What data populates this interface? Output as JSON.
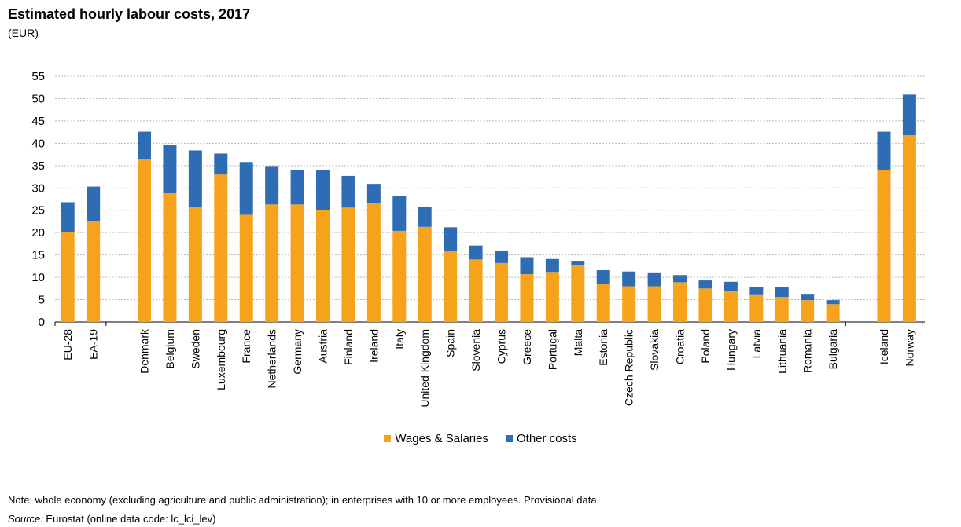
{
  "header": {
    "title": "Estimated hourly labour costs, 2017",
    "subtitle": "(EUR)"
  },
  "colors": {
    "wages": "#F7A21B",
    "other": "#2E6DB4",
    "grid": "#BBBBBB",
    "axis": "#000000"
  },
  "chart_data": {
    "type": "bar",
    "stacked": true,
    "title": "Estimated hourly labour costs, 2017",
    "ylabel": "(EUR)",
    "ylim": [
      0,
      55
    ],
    "yticks": [
      0,
      5,
      10,
      15,
      20,
      25,
      30,
      35,
      40,
      45,
      50,
      55
    ],
    "grid": "horizontal dashed",
    "legend": "bottom-center",
    "categories": [
      "EU-28",
      "EA-19",
      "Denmark",
      "Belgium",
      "Sweden",
      "Luxembourg",
      "France",
      "Netherlands",
      "Germany",
      "Austria",
      "Finland",
      "Ireland",
      "Italy",
      "United Kingdom",
      "Spain",
      "Slovenia",
      "Cyprus",
      "Greece",
      "Portugal",
      "Malta",
      "Estonia",
      "Czech Republic",
      "Slovakia",
      "Croatia",
      "Poland",
      "Hungary",
      "Latvia",
      "Lithuania",
      "Romania",
      "Bulgaria",
      "Iceland",
      "Norway"
    ],
    "groups": [
      2,
      28,
      2
    ],
    "series": [
      {
        "name": "Wages & Salaries",
        "values": [
          20.2,
          22.5,
          36.5,
          28.8,
          25.8,
          33.0,
          24.0,
          26.3,
          26.3,
          25.0,
          25.6,
          26.7,
          20.4,
          21.3,
          15.8,
          14.0,
          13.2,
          10.7,
          11.2,
          12.7,
          8.6,
          8.0,
          8.0,
          8.9,
          7.5,
          7.0,
          6.2,
          5.6,
          4.9,
          4.0,
          34.0,
          41.8
        ]
      },
      {
        "name": "Other costs",
        "values": [
          6.6,
          7.8,
          6.1,
          10.8,
          12.6,
          4.7,
          11.8,
          8.6,
          7.8,
          9.1,
          7.1,
          4.2,
          7.8,
          4.4,
          5.4,
          3.1,
          2.8,
          3.8,
          2.9,
          1.0,
          3.0,
          3.3,
          3.1,
          1.6,
          1.8,
          2.0,
          1.6,
          2.3,
          1.4,
          0.9,
          8.6,
          9.1
        ]
      }
    ]
  },
  "footer": {
    "note": "Note: whole economy (excluding agriculture and public administration); in enterprises with 10 or more employees. Provisional data.",
    "source_label": "Source:",
    "source_text": " Eurostat (online data code: lc_lci_lev)"
  }
}
